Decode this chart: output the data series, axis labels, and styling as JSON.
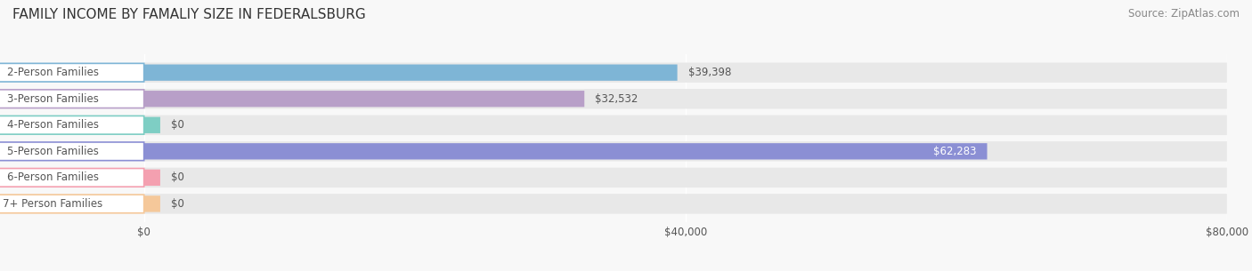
{
  "title": "FAMILY INCOME BY FAMALIY SIZE IN FEDERALSBURG",
  "source": "Source: ZipAtlas.com",
  "categories": [
    "2-Person Families",
    "3-Person Families",
    "4-Person Families",
    "5-Person Families",
    "6-Person Families",
    "7+ Person Families"
  ],
  "values": [
    39398,
    32532,
    0,
    62283,
    0,
    0
  ],
  "bar_colors": [
    "#7eb5d6",
    "#b89fc8",
    "#7ecec4",
    "#8b8fd4",
    "#f4a0b0",
    "#f5c89a"
  ],
  "label_colors": [
    "#444444",
    "#444444",
    "#444444",
    "#ffffff",
    "#444444",
    "#444444"
  ],
  "xlim": [
    0,
    80000
  ],
  "xticks": [
    0,
    40000,
    80000
  ],
  "xtick_labels": [
    "$0",
    "$40,000",
    "$80,000"
  ],
  "background_color": "#f0f0f0",
  "bar_background_color": "#e8e8e8",
  "title_fontsize": 11,
  "source_fontsize": 8.5,
  "label_fontsize": 8.5,
  "value_fontsize": 8.5,
  "bar_height": 0.62,
  "figsize": [
    14.06,
    3.05
  ],
  "dpi": 100
}
